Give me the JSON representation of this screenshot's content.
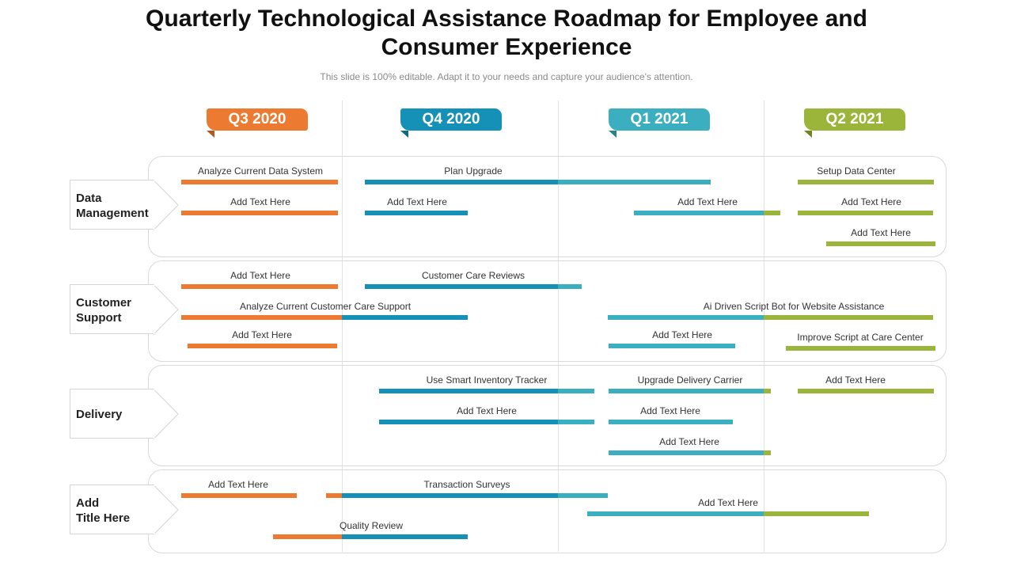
{
  "title_line1": "Quarterly Technological Assistance Roadmap for Employee and",
  "title_line2": "Consumer Experience",
  "subtitle": "This slide is 100% editable. Adapt it to your needs and capture your audience's attention.",
  "colors": {
    "q3": "#ec7a31",
    "q4": "#1591b8",
    "q1": "#3bafc0",
    "q2": "#9bb53a"
  },
  "quarters": [
    "Q3 2020",
    "Q4 2020",
    "Q1 2021",
    "Q2 2021"
  ],
  "rows": [
    {
      "label": "Data\nManagement",
      "tasks": [
        "Analyze  Current Data System",
        "Plan Upgrade",
        "Setup Data Center",
        "Add Text Here",
        "Add Text Here",
        "Add Text Here",
        "Add Text Here",
        "Add Text Here"
      ]
    },
    {
      "label": "Customer\nSupport",
      "tasks": [
        "Add Text Here",
        "Customer Care Reviews",
        "Analyze  Current Customer Care Support",
        "Ai Driven Script Bot for Website Assistance",
        "Add Text Here",
        "Add Text Here",
        "Improve Script at Care Center"
      ]
    },
    {
      "label": "Delivery",
      "tasks": [
        "Use Smart Inventory Tracker",
        "Upgrade Delivery Carrier",
        "Add Text Here",
        "Add Text Here",
        "Add Text Here",
        "Add Text Here"
      ]
    },
    {
      "label": "Add\nTitle Here",
      "tasks": [
        "Add Text Here",
        "Transaction Surveys",
        "Add Text Here",
        "Quality Review"
      ]
    }
  ]
}
